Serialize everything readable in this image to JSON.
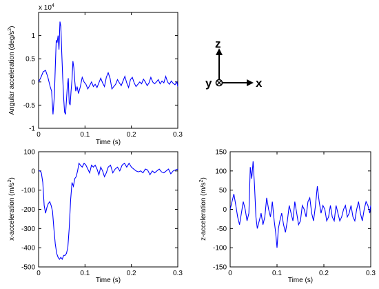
{
  "chart_data": [
    {
      "type": "line",
      "ylabel_base": "Angular acceleration (deg/s",
      "ylabel_sup": "2",
      "ylabel_close": ")",
      "xlabel": "Time (s)",
      "exponent_label": "x 10",
      "exponent_sup": "4",
      "xlim": [
        0,
        0.3
      ],
      "ylim": [
        -1,
        1.5
      ],
      "xticks": [
        "0",
        "0.1",
        "0.2",
        "0.3"
      ],
      "yticks": [
        "-1",
        "-0.5",
        "0",
        "0.5",
        "1"
      ],
      "series": [
        {
          "color": "#0000ff",
          "x": [
            0,
            0.005,
            0.01,
            0.015,
            0.02,
            0.025,
            0.028,
            0.031,
            0.034,
            0.036,
            0.038,
            0.04,
            0.042,
            0.044,
            0.046,
            0.048,
            0.05,
            0.052,
            0.054,
            0.056,
            0.058,
            0.06,
            0.062,
            0.064,
            0.066,
            0.068,
            0.07,
            0.072,
            0.074,
            0.076,
            0.078,
            0.08,
            0.083,
            0.086,
            0.09,
            0.094,
            0.098,
            0.102,
            0.106,
            0.11,
            0.114,
            0.118,
            0.122,
            0.126,
            0.13,
            0.134,
            0.138,
            0.142,
            0.146,
            0.15,
            0.154,
            0.158,
            0.162,
            0.166,
            0.17,
            0.174,
            0.178,
            0.182,
            0.186,
            0.19,
            0.194,
            0.198,
            0.202,
            0.206,
            0.21,
            0.214,
            0.218,
            0.222,
            0.226,
            0.23,
            0.234,
            0.238,
            0.242,
            0.246,
            0.25,
            0.254,
            0.258,
            0.262,
            0.266,
            0.27,
            0.274,
            0.278,
            0.282,
            0.286,
            0.29,
            0.294,
            0.298,
            0.3
          ],
          "y": [
            0,
            0.1,
            0.22,
            0.25,
            0.1,
            -0.1,
            -0.2,
            -0.7,
            -0.3,
            0.3,
            0.9,
            0.85,
            1.0,
            0.7,
            1.3,
            1.2,
            0.6,
            0.1,
            -0.35,
            -0.65,
            -0.7,
            -0.4,
            -0.1,
            0.08,
            -0.45,
            -0.5,
            -0.2,
            0.05,
            0.45,
            0.3,
            0.02,
            -0.2,
            -0.1,
            -0.25,
            -0.1,
            0.1,
            0.0,
            -0.05,
            -0.15,
            -0.08,
            0.0,
            -0.1,
            -0.05,
            -0.12,
            -0.02,
            0.08,
            -0.02,
            -0.1,
            0.1,
            0.2,
            0.08,
            -0.15,
            -0.1,
            -0.05,
            0.05,
            -0.02,
            -0.08,
            0.02,
            0.12,
            -0.02,
            -0.12,
            0.05,
            0.1,
            -0.02,
            -0.1,
            -0.05,
            0.0,
            -0.04,
            0.06,
            0.0,
            -0.08,
            -0.02,
            0.1,
            0.0,
            -0.04,
            0.0,
            0.05,
            -0.04,
            0.02,
            -0.02,
            0.12,
            0.0,
            -0.05,
            0.02,
            -0.03,
            -0.06,
            0.0,
            -0.1
          ]
        }
      ]
    },
    {
      "type": "line",
      "ylabel_base": "x-acceleration (m/s",
      "ylabel_sup": "2",
      "ylabel_close": ")",
      "xlabel": "Time (s)",
      "xlim": [
        0,
        0.3
      ],
      "ylim": [
        -500,
        100
      ],
      "xticks": [
        "0",
        "0.1",
        "0.2",
        "0.3"
      ],
      "yticks": [
        "-500",
        "-400",
        "-300",
        "-200",
        "-100",
        "0",
        "100"
      ],
      "series": [
        {
          "color": "#0000ff",
          "x": [
            0,
            0.003,
            0.006,
            0.009,
            0.012,
            0.015,
            0.018,
            0.021,
            0.024,
            0.027,
            0.03,
            0.033,
            0.036,
            0.039,
            0.042,
            0.045,
            0.048,
            0.051,
            0.054,
            0.057,
            0.06,
            0.063,
            0.066,
            0.069,
            0.072,
            0.075,
            0.078,
            0.081,
            0.084,
            0.087,
            0.09,
            0.094,
            0.098,
            0.102,
            0.106,
            0.11,
            0.114,
            0.118,
            0.122,
            0.126,
            0.13,
            0.134,
            0.138,
            0.142,
            0.146,
            0.15,
            0.155,
            0.16,
            0.165,
            0.17,
            0.175,
            0.18,
            0.185,
            0.19,
            0.195,
            0.2,
            0.205,
            0.21,
            0.215,
            0.22,
            0.225,
            0.23,
            0.235,
            0.24,
            0.245,
            0.25,
            0.255,
            0.26,
            0.265,
            0.27,
            0.275,
            0.28,
            0.285,
            0.29,
            0.295,
            0.3
          ],
          "y": [
            0,
            0,
            -10,
            -60,
            -180,
            -220,
            -190,
            -170,
            -160,
            -180,
            -210,
            -300,
            -380,
            -430,
            -450,
            -460,
            -450,
            -460,
            -440,
            -440,
            -430,
            -400,
            -300,
            -150,
            -60,
            -80,
            -40,
            -30,
            0,
            40,
            30,
            20,
            40,
            30,
            10,
            -10,
            30,
            20,
            30,
            10,
            -20,
            20,
            0,
            -30,
            -10,
            20,
            30,
            -10,
            10,
            20,
            0,
            30,
            40,
            20,
            40,
            20,
            10,
            0,
            -5,
            0,
            -10,
            10,
            5,
            -20,
            0,
            -10,
            0,
            10,
            -5,
            -10,
            0,
            10,
            -15,
            0,
            5,
            10
          ]
        }
      ]
    },
    {
      "type": "line",
      "ylabel_base": "z-acceleration (m/s",
      "ylabel_sup": "2",
      "ylabel_close": ")",
      "xlabel": "Time (s)",
      "xlim": [
        0,
        0.3
      ],
      "ylim": [
        -150,
        150
      ],
      "xticks": [
        "0",
        "0.1",
        "0.2",
        "0.3"
      ],
      "yticks": [
        "-150",
        "-100",
        "-50",
        "0",
        "50",
        "100",
        "150"
      ],
      "series": [
        {
          "color": "#0000ff",
          "x": [
            0,
            0.004,
            0.008,
            0.012,
            0.016,
            0.02,
            0.024,
            0.028,
            0.032,
            0.036,
            0.04,
            0.043,
            0.046,
            0.049,
            0.052,
            0.055,
            0.058,
            0.062,
            0.066,
            0.07,
            0.074,
            0.078,
            0.082,
            0.086,
            0.09,
            0.094,
            0.097,
            0.1,
            0.103,
            0.106,
            0.11,
            0.114,
            0.118,
            0.122,
            0.126,
            0.13,
            0.134,
            0.138,
            0.142,
            0.146,
            0.15,
            0.154,
            0.158,
            0.162,
            0.166,
            0.17,
            0.174,
            0.178,
            0.182,
            0.186,
            0.19,
            0.194,
            0.198,
            0.202,
            0.206,
            0.21,
            0.214,
            0.218,
            0.222,
            0.226,
            0.23,
            0.234,
            0.238,
            0.242,
            0.246,
            0.25,
            0.254,
            0.258,
            0.262,
            0.266,
            0.27,
            0.274,
            0.278,
            0.282,
            0.286,
            0.29,
            0.294,
            0.298,
            0.3
          ],
          "y": [
            0,
            20,
            40,
            10,
            -20,
            -40,
            -10,
            20,
            0,
            -30,
            -10,
            110,
            80,
            125,
            60,
            -20,
            -50,
            -30,
            -10,
            -40,
            -20,
            30,
            0,
            -20,
            20,
            -30,
            -60,
            -100,
            -50,
            -30,
            -10,
            -40,
            -60,
            -30,
            10,
            -10,
            -30,
            20,
            -10,
            -40,
            -30,
            10,
            0,
            -20,
            20,
            30,
            -10,
            -30,
            10,
            60,
            20,
            -10,
            10,
            0,
            -30,
            -20,
            10,
            -20,
            -30,
            10,
            -10,
            -30,
            -20,
            0,
            10,
            -20,
            -10,
            10,
            -20,
            -30,
            0,
            20,
            -10,
            -30,
            0,
            20,
            10,
            -10,
            10
          ]
        }
      ]
    }
  ],
  "frame": {
    "z_label": "z",
    "y_label": "y",
    "x_label": "x"
  }
}
